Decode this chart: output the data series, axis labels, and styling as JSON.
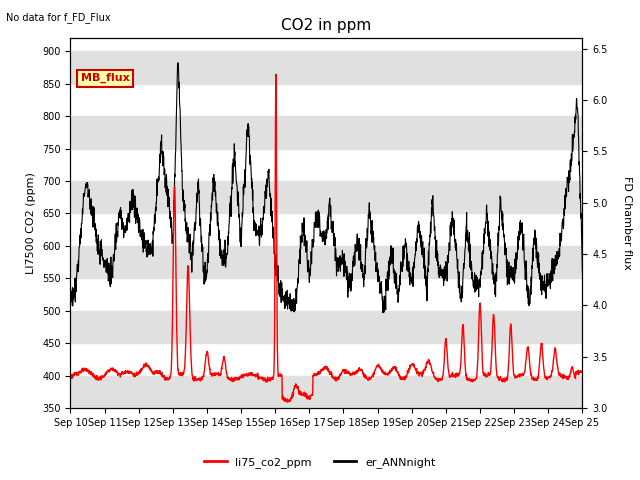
{
  "title": "CO2 in ppm",
  "top_left_text": "No data for f_FD_Flux",
  "ylabel_left": "LI7500 CO2 (ppm)",
  "ylabel_right": "FD Chamber flux",
  "ylim_left": [
    350,
    920
  ],
  "ylim_right": [
    3.0,
    6.6
  ],
  "yticks_left": [
    350,
    400,
    450,
    500,
    550,
    600,
    650,
    700,
    750,
    800,
    850,
    900
  ],
  "yticks_right": [
    3.0,
    3.5,
    4.0,
    4.5,
    5.0,
    5.5,
    6.0,
    6.5
  ],
  "xtick_labels": [
    "Sep 10",
    "Sep 11",
    "Sep 12",
    "Sep 13",
    "Sep 14",
    "Sep 15",
    "Sep 16",
    "Sep 17",
    "Sep 18",
    "Sep 19",
    "Sep 20",
    "Sep 21",
    "Sep 22",
    "Sep 23",
    "Sep 24",
    "Sep 25"
  ],
  "color_red": "#ff0000",
  "color_black": "#000000",
  "legend_labels": [
    "li75_co2_ppm",
    "er_ANNnight"
  ],
  "mb_flux_box_color": "#ffffaa",
  "mb_flux_text_color": "#cc0000",
  "mb_flux_border_color": "#cc0000",
  "background_color": "#ffffff",
  "band_color": "#e0e0e0",
  "title_fontsize": 11,
  "label_fontsize": 8,
  "tick_fontsize": 7,
  "linewidth_red": 1.0,
  "linewidth_black": 0.8
}
